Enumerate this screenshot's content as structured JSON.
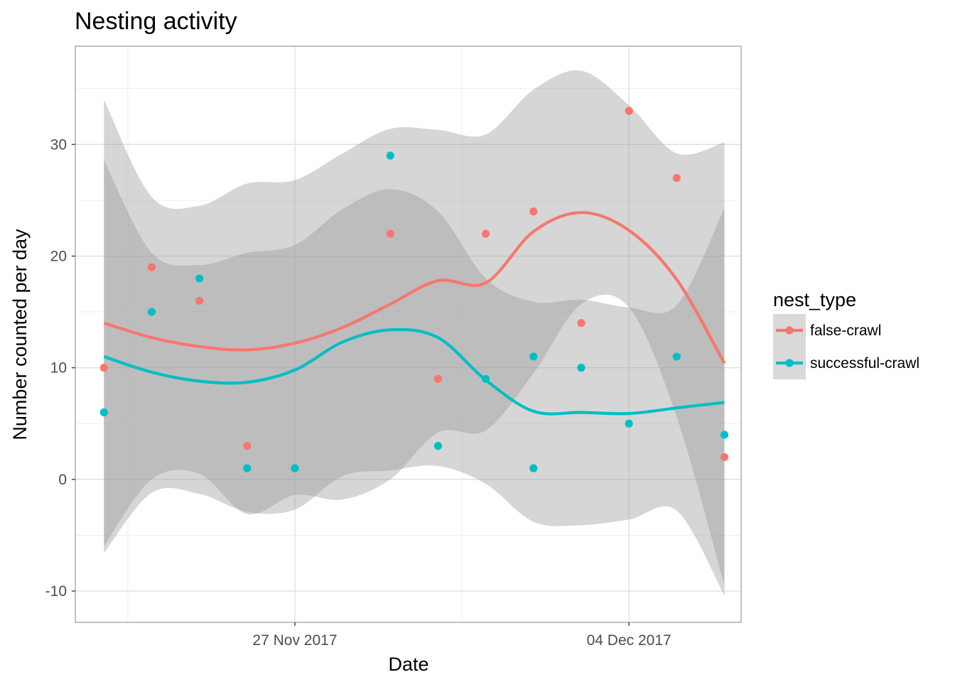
{
  "chart_data": {
    "type": "scatter",
    "title": "Nesting activity",
    "xlabel": "Date",
    "ylabel": "Number counted per day",
    "x_ticks": [
      "27 Nov 2017",
      "04 Dec 2017"
    ],
    "y_ticks": [
      "-10",
      "0",
      "10",
      "20",
      "30"
    ],
    "ylim": [
      -12.8,
      38.8
    ],
    "xlim": [
      "2017-11-22T09:36",
      "2017-12-06T08:24"
    ],
    "grid": true,
    "legend_position": "right",
    "legend_title": "nest_type",
    "series": [
      {
        "name": "false-crawl",
        "color": "#F8766D",
        "points": [
          {
            "x": "2017-11-23",
            "y": 10
          },
          {
            "x": "2017-11-24",
            "y": 19
          },
          {
            "x": "2017-11-25",
            "y": 16
          },
          {
            "x": "2017-11-26",
            "y": 3
          },
          {
            "x": "2017-11-29",
            "y": 22
          },
          {
            "x": "2017-11-30",
            "y": 9
          },
          {
            "x": "2017-12-01",
            "y": 22
          },
          {
            "x": "2017-12-02",
            "y": 24
          },
          {
            "x": "2017-12-03",
            "y": 14
          },
          {
            "x": "2017-12-04",
            "y": 33
          },
          {
            "x": "2017-12-05",
            "y": 27
          },
          {
            "x": "2017-12-06",
            "y": 2
          }
        ],
        "smooth": [
          {
            "x": "2017-11-23",
            "y": 14,
            "lo": -6,
            "hi": 34
          },
          {
            "x": "2017-11-24",
            "y": 12.7,
            "lo": 0,
            "hi": 25.3
          },
          {
            "x": "2017-11-25",
            "y": 11.9,
            "lo": 0.5,
            "hi": 24.5
          },
          {
            "x": "2017-11-26",
            "y": 11.6,
            "lo": -3.1,
            "hi": 26.5
          },
          {
            "x": "2017-11-27",
            "y": 12.2,
            "lo": -1.4,
            "hi": 26.8
          },
          {
            "x": "2017-11-28",
            "y": 13.6,
            "lo": -1.8,
            "hi": 29.2
          },
          {
            "x": "2017-11-29",
            "y": 15.7,
            "lo": 0,
            "hi": 31.4
          },
          {
            "x": "2017-11-30",
            "y": 17.8,
            "lo": 4.2,
            "hi": 31.3
          },
          {
            "x": "2017-12-01",
            "y": 17.6,
            "lo": 4.4,
            "hi": 30.9
          },
          {
            "x": "2017-12-02",
            "y": 22.2,
            "lo": 9.5,
            "hi": 34.9
          },
          {
            "x": "2017-12-03",
            "y": 23.9,
            "lo": 15.7,
            "hi": 36.6
          },
          {
            "x": "2017-12-04",
            "y": 22.3,
            "lo": 15.4,
            "hi": 33.5
          },
          {
            "x": "2017-12-05",
            "y": 17.9,
            "lo": 5.6,
            "hi": 29.2
          },
          {
            "x": "2017-12-06",
            "y": 10.4,
            "lo": -9.5,
            "hi": 30.2
          }
        ]
      },
      {
        "name": "successful-crawl",
        "color": "#00BFC4",
        "points": [
          {
            "x": "2017-11-23",
            "y": 6
          },
          {
            "x": "2017-11-24",
            "y": 15
          },
          {
            "x": "2017-11-25",
            "y": 18
          },
          {
            "x": "2017-11-26",
            "y": 1
          },
          {
            "x": "2017-11-27",
            "y": 1
          },
          {
            "x": "2017-11-29",
            "y": 29
          },
          {
            "x": "2017-11-30",
            "y": 3
          },
          {
            "x": "2017-12-01",
            "y": 9
          },
          {
            "x": "2017-12-02",
            "y": 11
          },
          {
            "x": "2017-12-02",
            "y": 1
          },
          {
            "x": "2017-12-03",
            "y": 10
          },
          {
            "x": "2017-12-04",
            "y": 5
          },
          {
            "x": "2017-12-05",
            "y": 11
          },
          {
            "x": "2017-12-06",
            "y": 4
          }
        ],
        "smooth": [
          {
            "x": "2017-11-23",
            "y": 11,
            "lo": -6.6,
            "hi": 28.6
          },
          {
            "x": "2017-11-24",
            "y": 9.6,
            "lo": -1.2,
            "hi": 20.3
          },
          {
            "x": "2017-11-25",
            "y": 8.8,
            "lo": -1.3,
            "hi": 19.2
          },
          {
            "x": "2017-11-26",
            "y": 8.7,
            "lo": -2.9,
            "hi": 20.3
          },
          {
            "x": "2017-11-27",
            "y": 9.8,
            "lo": -2.7,
            "hi": 21
          },
          {
            "x": "2017-11-28",
            "y": 12.3,
            "lo": 0.3,
            "hi": 24.2
          },
          {
            "x": "2017-11-29",
            "y": 13.4,
            "lo": 0.8,
            "hi": 26
          },
          {
            "x": "2017-11-30",
            "y": 12.7,
            "lo": 1.2,
            "hi": 24
          },
          {
            "x": "2017-12-01",
            "y": 8.9,
            "lo": -0.4,
            "hi": 18
          },
          {
            "x": "2017-12-02",
            "y": 6.1,
            "lo": -3.8,
            "hi": 15.9
          },
          {
            "x": "2017-12-03",
            "y": 6,
            "lo": -4.1,
            "hi": 16.1
          },
          {
            "x": "2017-12-04",
            "y": 5.9,
            "lo": -3.6,
            "hi": 15.4
          },
          {
            "x": "2017-12-05",
            "y": 6.4,
            "lo": -2.8,
            "hi": 15.6
          },
          {
            "x": "2017-12-06",
            "y": 6.9,
            "lo": -10.4,
            "hi": 24.3
          }
        ]
      }
    ]
  }
}
